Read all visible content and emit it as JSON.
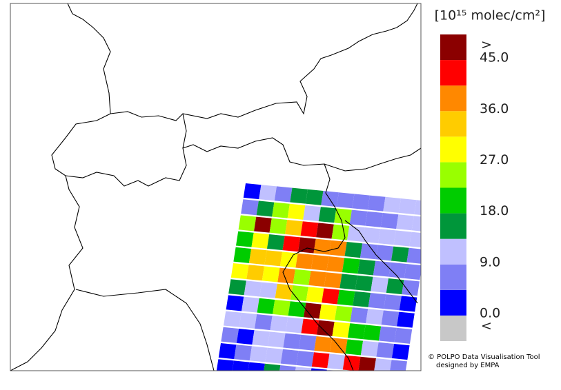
{
  "colorbar": {
    "unit_label": "[10¹⁵ molec/cm²]",
    "over_label": ">",
    "under_label": "<",
    "levels": [
      0,
      4.5,
      9,
      13.5,
      18,
      22.5,
      27,
      31.5,
      36,
      40.5,
      45
    ],
    "colors": [
      "#c8c8c8",
      "#0000ff",
      "#7f7ff5",
      "#c0c0ff",
      "#00963a",
      "#00cc00",
      "#99ff00",
      "#ffff00",
      "#ffcc00",
      "#ff8800",
      "#ff0000",
      "#8b0000"
    ],
    "ticks": [
      {
        "value": 0,
        "label": "0.0"
      },
      {
        "value": 9,
        "label": "9.0"
      },
      {
        "value": 18,
        "label": "18.0"
      },
      {
        "value": 27,
        "label": "27.0"
      },
      {
        "value": 36,
        "label": "36.0"
      },
      {
        "value": 45,
        "label": "45.0"
      }
    ]
  },
  "cells": [
    [
      2,
      11,
      7,
      16,
      16,
      7,
      7,
      7,
      7,
      11,
      11,
      11
    ],
    [
      7,
      16,
      25,
      29,
      11,
      16,
      25,
      7,
      7,
      7,
      11,
      11
    ],
    [
      25,
      47,
      25,
      33,
      43,
      47,
      25,
      11,
      11,
      11,
      11,
      11
    ],
    [
      20,
      29,
      16,
      43,
      47,
      38,
      38,
      16,
      7,
      7,
      16,
      7
    ],
    [
      20,
      33,
      33,
      29,
      38,
      38,
      38,
      20,
      16,
      7,
      7,
      7
    ],
    [
      29,
      33,
      29,
      38,
      25,
      38,
      38,
      16,
      16,
      11,
      16,
      7
    ],
    [
      16,
      11,
      11,
      33,
      25,
      29,
      43,
      20,
      16,
      7,
      7,
      2
    ],
    [
      2,
      11,
      20,
      25,
      20,
      47,
      29,
      25,
      7,
      11,
      7,
      2
    ],
    [
      11,
      11,
      7,
      11,
      11,
      43,
      47,
      29,
      20,
      20,
      7,
      7
    ],
    [
      7,
      2,
      11,
      11,
      7,
      7,
      38,
      38,
      20,
      11,
      7,
      2
    ],
    [
      2,
      7,
      11,
      11,
      7,
      7,
      43,
      11,
      43,
      47,
      11,
      7
    ],
    [
      2,
      2,
      2,
      16,
      7,
      11,
      2,
      11,
      7,
      7,
      7,
      2
    ]
  ],
  "credit": [
    "© POLPO Data Visualisation Tool",
    "designed by EMPA"
  ]
}
